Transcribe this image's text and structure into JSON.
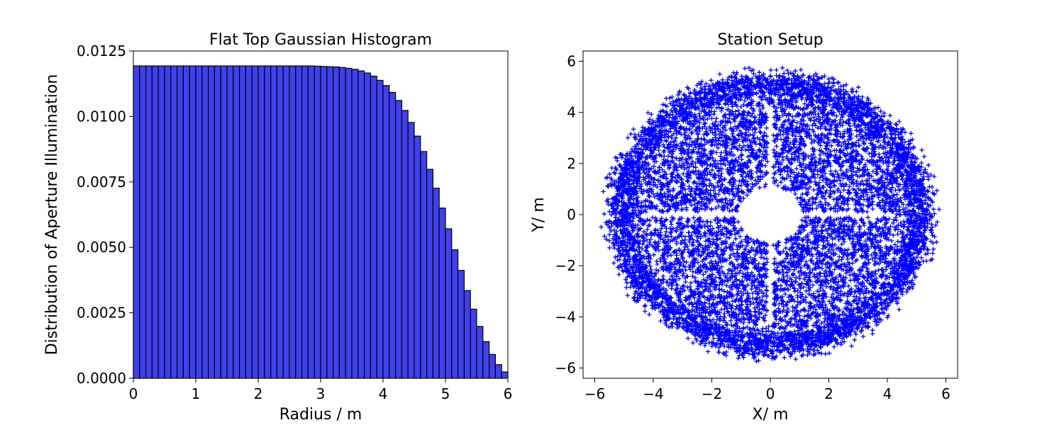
{
  "chart_data": [
    {
      "type": "bar",
      "title": "Flat Top Gaussian Histogram",
      "xlabel": "Radius / m",
      "ylabel": "Distribution of Aperture Illumination",
      "xlim": [
        0,
        6
      ],
      "ylim": [
        0,
        0.0125
      ],
      "xticks": [
        "0",
        "1",
        "2",
        "3",
        "4",
        "5",
        "6"
      ],
      "yticks": [
        "0.0000",
        "0.0025",
        "0.0050",
        "0.0075",
        "0.0100",
        "0.0125"
      ],
      "bar_color": "#4040ee",
      "edge_color": "#000000",
      "bin_width": 0.1,
      "bin_starts": [
        0.0,
        0.1,
        0.2,
        0.3,
        0.4,
        0.5,
        0.6,
        0.7,
        0.8,
        0.9,
        1.0,
        1.1,
        1.2,
        1.3,
        1.4,
        1.5,
        1.6,
        1.7,
        1.8,
        1.9,
        2.0,
        2.1,
        2.2,
        2.3,
        2.4,
        2.5,
        2.6,
        2.7,
        2.8,
        2.9,
        3.0,
        3.1,
        3.2,
        3.3,
        3.4,
        3.5,
        3.6,
        3.7,
        3.8,
        3.9,
        4.0,
        4.1,
        4.2,
        4.3,
        4.4,
        4.5,
        4.6,
        4.7,
        4.8,
        4.9,
        5.0,
        5.1,
        5.2,
        5.3,
        5.4,
        5.5,
        5.6,
        5.7,
        5.8,
        5.9
      ],
      "values": [
        0.01193,
        0.01193,
        0.01193,
        0.01193,
        0.01193,
        0.01193,
        0.01193,
        0.01193,
        0.01193,
        0.01193,
        0.01193,
        0.01193,
        0.01193,
        0.01193,
        0.01193,
        0.01193,
        0.01193,
        0.01193,
        0.01193,
        0.01193,
        0.01193,
        0.01193,
        0.01193,
        0.01193,
        0.01193,
        0.01193,
        0.01193,
        0.01193,
        0.01193,
        0.01192,
        0.01191,
        0.0119,
        0.01189,
        0.01187,
        0.01184,
        0.0118,
        0.01174,
        0.01166,
        0.01154,
        0.01138,
        0.01118,
        0.01092,
        0.01061,
        0.01023,
        0.00977,
        0.00925,
        0.00866,
        0.00798,
        0.00726,
        0.0065,
        0.00571,
        0.00491,
        0.00412,
        0.00335,
        0.00264,
        0.00198,
        0.0014,
        0.00091,
        0.00052,
        0.00024
      ]
    },
    {
      "type": "scatter",
      "title": "Station Setup",
      "xlabel": "X/ m",
      "ylabel": "Y/ m",
      "xlim": [
        -6.4,
        6.4
      ],
      "ylim": [
        -6.4,
        6.4
      ],
      "xticks": [
        "−6",
        "−4",
        "−2",
        "0",
        "2",
        "4",
        "6"
      ],
      "yticks": [
        "−6",
        "−4",
        "−2",
        "0",
        "2",
        "4",
        "6"
      ],
      "marker": "+",
      "color": "#0000ff",
      "point_cloud": {
        "shape": "disk",
        "outer_radius": 5.8,
        "central_hole_radius": 1.1,
        "gap_lines": [
          {
            "from": [
              -4.3,
              0
            ],
            "to": [
              4.3,
              0
            ],
            "half_width": 0.1
          },
          {
            "from": [
              0,
              -4.3
            ],
            "to": [
              0,
              4.3
            ],
            "half_width": 0.1
          }
        ]
      }
    }
  ]
}
